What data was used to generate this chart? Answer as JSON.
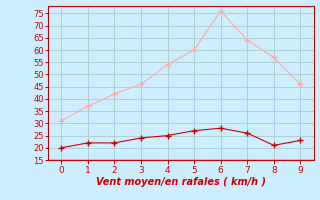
{
  "x": [
    0,
    1,
    2,
    3,
    4,
    5,
    6,
    7,
    8,
    9
  ],
  "y_mean": [
    20,
    22,
    22,
    24,
    25,
    27,
    28,
    26,
    21,
    23
  ],
  "y_gust": [
    31,
    37,
    42,
    46,
    54,
    60,
    76,
    64,
    57,
    46
  ],
  "line_mean_color": "#cc0000",
  "line_gust_color": "#ffaaaa",
  "marker_mean_color": "#cc0000",
  "marker_gust_color": "#ffaaaa",
  "bg_color": "#cceeff",
  "grid_color": "#aacccc",
  "xlabel": "Vent moyen/en rafales ( km/h )",
  "xlabel_color": "#cc0000",
  "tick_color": "#cc0000",
  "spine_color": "#cc0000",
  "ylim": [
    15,
    78
  ],
  "yticks": [
    15,
    20,
    25,
    30,
    35,
    40,
    45,
    50,
    55,
    60,
    65,
    70,
    75
  ],
  "xlim": [
    -0.5,
    9.5
  ]
}
